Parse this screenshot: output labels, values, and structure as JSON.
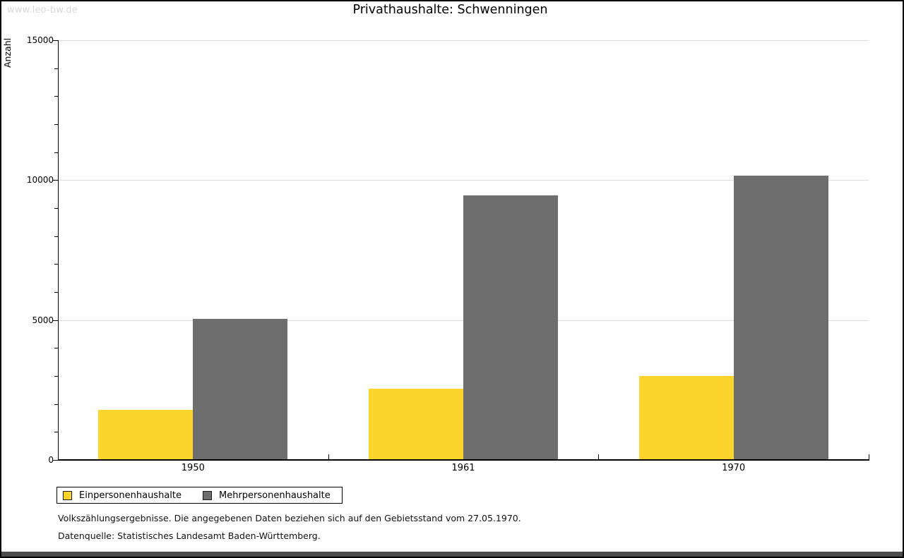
{
  "page": {
    "watermark": "www.leo-bw.de"
  },
  "chart_data": {
    "type": "bar",
    "title": "Privathaushalte: Schwenningen",
    "ylabel": "Anzahl",
    "xlabel": "",
    "categories": [
      "1950",
      "1961",
      "1970"
    ],
    "series": [
      {
        "name": "Einpersonenhaushalte",
        "color": "#FCD42C",
        "values": [
          1800,
          2550,
          3000
        ]
      },
      {
        "name": "Mehrpersonenhaushalte",
        "color": "#6E6E6E",
        "values": [
          5050,
          9450,
          10150
        ]
      }
    ],
    "ylim": [
      0,
      15000
    ],
    "yticks": [
      0,
      5000,
      10000,
      15000
    ],
    "minor_tick_step": 1000,
    "grid": true,
    "grid_color": "#dcdcdc",
    "legend_position": "bottom-left"
  },
  "footnotes": {
    "line1": "Volkszählungsergebnisse. Die angegebenen Daten beziehen sich auf den Gebietsstand vom 27.05.1970.",
    "line2": "Datenquelle: Statistisches Landesamt Baden-Württemberg."
  }
}
